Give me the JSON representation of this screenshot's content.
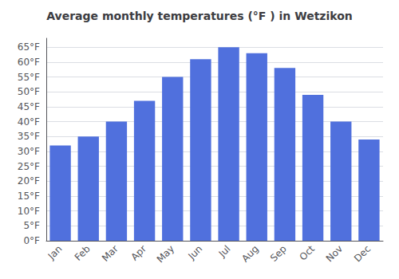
{
  "chart_data": {
    "type": "bar",
    "title": "Average monthly temperatures (°F ) in Wetzikon",
    "categories": [
      "Jan",
      "Feb",
      "Mar",
      "Apr",
      "May",
      "Jun",
      "Jul",
      "Aug",
      "Sep",
      "Oct",
      "Nov",
      "Dec"
    ],
    "values": [
      32,
      35,
      40,
      47,
      55,
      61,
      65,
      63,
      58,
      49,
      40,
      34
    ],
    "ylim": [
      0,
      68
    ],
    "yticks": [
      {
        "value": 0,
        "label": "0°F"
      },
      {
        "value": 5,
        "label": "5°F"
      },
      {
        "value": 10,
        "label": "10°F"
      },
      {
        "value": 15,
        "label": "15°F"
      },
      {
        "value": 20,
        "label": "20°F"
      },
      {
        "value": 25,
        "label": "25°F"
      },
      {
        "value": 30,
        "label": "30°F"
      },
      {
        "value": 35,
        "label": "35°F"
      },
      {
        "value": 40,
        "label": "40°F"
      },
      {
        "value": 45,
        "label": "45°F"
      },
      {
        "value": 50,
        "label": "50°F"
      },
      {
        "value": 55,
        "label": "55°F"
      },
      {
        "value": 60,
        "label": "60°F"
      },
      {
        "value": 65,
        "label": "65°F"
      }
    ],
    "grid": true
  }
}
